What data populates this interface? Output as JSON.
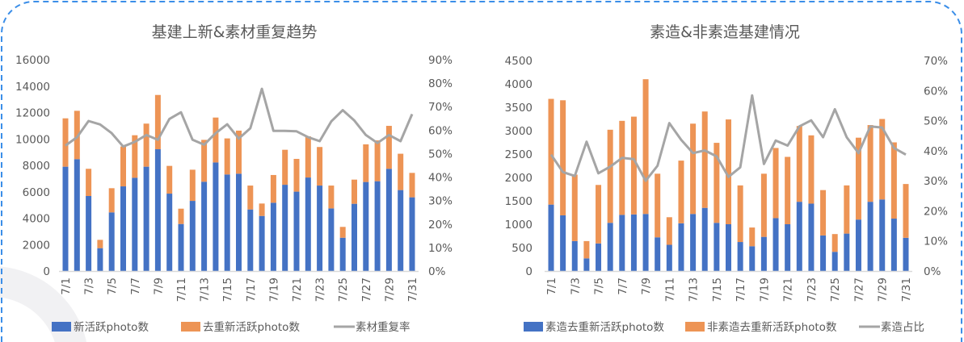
{
  "colors": {
    "blue": "#4472c4",
    "orange": "#ed9455",
    "gray": "#a5a5a5",
    "border": "#3b8ee8"
  },
  "chart_data": [
    {
      "type": "bar+line",
      "title": "基建上新&素材重复趋势",
      "categories": [
        "7/1",
        "7/2",
        "7/3",
        "7/4",
        "7/5",
        "7/6",
        "7/7",
        "7/8",
        "7/9",
        "7/10",
        "7/11",
        "7/12",
        "7/13",
        "7/14",
        "7/15",
        "7/16",
        "7/17",
        "7/18",
        "7/19",
        "7/20",
        "7/21",
        "7/22",
        "7/23",
        "7/24",
        "7/25",
        "7/26",
        "7/27",
        "7/28",
        "7/29",
        "7/30",
        "7/31"
      ],
      "x_tick_labels": [
        "7/1",
        "7/3",
        "7/5",
        "7/7",
        "7/9",
        "7/11",
        "7/13",
        "7/15",
        "7/17",
        "7/19",
        "7/21",
        "7/23",
        "7/25",
        "7/27",
        "7/29",
        "7/31"
      ],
      "stacked": true,
      "series": [
        {
          "name": "新活跃photo数",
          "type": "bar",
          "axis": "left",
          "values": [
            7900,
            8470,
            5680,
            1730,
            4440,
            6410,
            7060,
            7900,
            9220,
            5860,
            3560,
            5310,
            6760,
            8220,
            7310,
            7370,
            4660,
            4170,
            5170,
            6530,
            6010,
            7080,
            6470,
            4740,
            2520,
            5090,
            6740,
            6800,
            7740,
            6130,
            5580
          ]
        },
        {
          "name": "去重新活跃photo数",
          "type": "bar",
          "axis": "left",
          "values": [
            3660,
            3660,
            2060,
            630,
            1830,
            3020,
            3220,
            3260,
            4110,
            2100,
            1160,
            2360,
            3170,
            3400,
            2730,
            3260,
            1810,
            940,
            2100,
            2650,
            2480,
            3120,
            2920,
            1730,
            820,
            1830,
            2850,
            3090,
            3250,
            2750,
            1850
          ]
        },
        {
          "name": "素材重复率",
          "type": "line",
          "axis": "right",
          "values": [
            53.4,
            57.0,
            63.9,
            62.4,
            58.7,
            53.0,
            55.0,
            57.9,
            55.9,
            64.8,
            67.6,
            55.9,
            53.8,
            58.7,
            62.5,
            56.4,
            60.8,
            77.6,
            59.7,
            59.7,
            59.5,
            57.0,
            55.3,
            63.7,
            68.5,
            64.1,
            57.9,
            54.5,
            57.9,
            55.3,
            66.8
          ]
        }
      ],
      "ylim": [
        0,
        16000
      ],
      "y_ticks": [
        "0",
        "2000",
        "4000",
        "6000",
        "8000",
        "10000",
        "12000",
        "14000",
        "16000"
      ],
      "y2lim": [
        0,
        90
      ],
      "y2_ticks": [
        "0%",
        "10%",
        "20%",
        "30%",
        "40%",
        "50%",
        "60%",
        "70%",
        "80%",
        "90%"
      ],
      "grid": false,
      "legend": "bottom"
    },
    {
      "type": "bar+line",
      "title": "素造&非素造基建情况",
      "categories": [
        "7/1",
        "7/2",
        "7/3",
        "7/4",
        "7/5",
        "7/6",
        "7/7",
        "7/8",
        "7/9",
        "7/10",
        "7/11",
        "7/12",
        "7/13",
        "7/14",
        "7/15",
        "7/16",
        "7/17",
        "7/18",
        "7/19",
        "7/20",
        "7/21",
        "7/22",
        "7/23",
        "7/24",
        "7/25",
        "7/26",
        "7/27",
        "7/28",
        "7/29",
        "7/30",
        "7/31"
      ],
      "x_tick_labels": [
        "7/1",
        "7/3",
        "7/5",
        "7/7",
        "7/9",
        "7/11",
        "7/13",
        "7/15",
        "7/17",
        "7/19",
        "7/21",
        "7/23",
        "7/25",
        "7/27",
        "7/29",
        "7/31"
      ],
      "stacked": true,
      "series": [
        {
          "name": "素造去重新活跃photo数",
          "type": "bar",
          "axis": "left",
          "values": [
            1420,
            1190,
            640,
            270,
            590,
            1030,
            1200,
            1210,
            1220,
            720,
            560,
            1020,
            1220,
            1350,
            1030,
            1000,
            620,
            530,
            730,
            1130,
            1000,
            1480,
            1440,
            760,
            410,
            800,
            1100,
            1480,
            1530,
            1120,
            710
          ]
        },
        {
          "name": "非素造去重新活跃photo数",
          "type": "bar",
          "axis": "left",
          "values": [
            2260,
            2460,
            1420,
            370,
            1250,
            1990,
            2010,
            2090,
            2880,
            1360,
            590,
            1340,
            1930,
            2060,
            1710,
            2240,
            1210,
            400,
            1350,
            1500,
            1440,
            1620,
            1460,
            970,
            380,
            1030,
            1750,
            1640,
            1720,
            1630,
            1150
          ]
        },
        {
          "name": "素造占比",
          "type": "line",
          "axis": "right",
          "values": [
            38.7,
            32.9,
            31.6,
            43.0,
            32.5,
            34.7,
            37.6,
            37.2,
            30.0,
            35.0,
            49.2,
            43.6,
            39.2,
            40.1,
            38.1,
            31.3,
            34.5,
            58.4,
            35.6,
            43.4,
            41.7,
            48.1,
            50.1,
            44.5,
            53.8,
            44.5,
            39.2,
            48.1,
            47.7,
            40.9,
            38.7
          ]
        }
      ],
      "ylim": [
        0,
        4500
      ],
      "y_ticks": [
        "0",
        "500",
        "1000",
        "1500",
        "2000",
        "2500",
        "3000",
        "3500",
        "4000",
        "4500"
      ],
      "y2lim": [
        0,
        70
      ],
      "y2_ticks": [
        "0%",
        "10%",
        "20%",
        "30%",
        "40%",
        "50%",
        "60%",
        "70%"
      ],
      "grid": false,
      "legend": "bottom"
    }
  ]
}
